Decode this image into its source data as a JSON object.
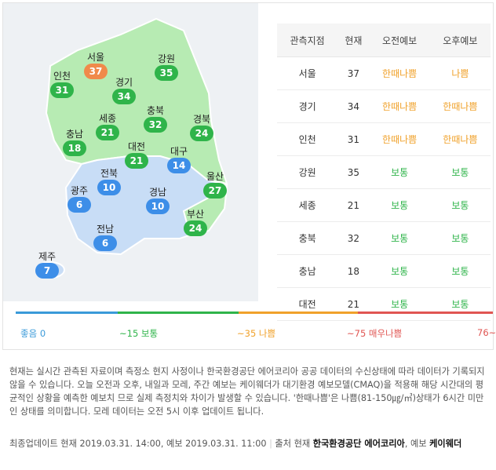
{
  "regions": [
    {
      "name": "서울",
      "value": "37",
      "color": "#f08a4b"
    },
    {
      "name": "강원",
      "value": "35",
      "color": "#2fb44a"
    },
    {
      "name": "인천",
      "value": "31",
      "color": "#2fb44a"
    },
    {
      "name": "경기",
      "value": "34",
      "color": "#2fb44a"
    },
    {
      "name": "충북",
      "value": "32",
      "color": "#2fb44a"
    },
    {
      "name": "세종",
      "value": "21",
      "color": "#2fb44a"
    },
    {
      "name": "경북",
      "value": "24",
      "color": "#2fb44a"
    },
    {
      "name": "충남",
      "value": "18",
      "color": "#2fb44a"
    },
    {
      "name": "대전",
      "value": "21",
      "color": "#2fb44a"
    },
    {
      "name": "대구",
      "value": "14",
      "color": "#3d8ee8"
    },
    {
      "name": "전북",
      "value": "10",
      "color": "#3d8ee8"
    },
    {
      "name": "울산",
      "value": "27",
      "color": "#2fb44a"
    },
    {
      "name": "광주",
      "value": "6",
      "color": "#3d8ee8"
    },
    {
      "name": "경남",
      "value": "10",
      "color": "#3d8ee8"
    },
    {
      "name": "부산",
      "value": "24",
      "color": "#2fb44a"
    },
    {
      "name": "전남",
      "value": "6",
      "color": "#3d8ee8"
    },
    {
      "name": "제주",
      "value": "7",
      "color": "#3d8ee8"
    }
  ],
  "table": {
    "headers": [
      "관측지점",
      "현재",
      "오전예보",
      "오후예보"
    ],
    "rows": [
      [
        "서울",
        "37",
        "한때나쁨",
        "나쁨"
      ],
      [
        "경기",
        "34",
        "한때나쁨",
        "한때나쁨"
      ],
      [
        "인천",
        "31",
        "한때나쁨",
        "한때나쁨"
      ],
      [
        "강원",
        "35",
        "보통",
        "보통"
      ],
      [
        "세종",
        "21",
        "보통",
        "보통"
      ],
      [
        "충북",
        "32",
        "보통",
        "보통"
      ],
      [
        "충남",
        "18",
        "보통",
        "보통"
      ],
      [
        "대전",
        "21",
        "보통",
        "보통"
      ]
    ]
  },
  "status_colors": {
    "보통": "#2fb44a",
    "한때나쁨": "#f0a12a",
    "나쁨": "#f0a12a"
  },
  "legend": [
    {
      "label": "좋음 0",
      "color": "#3a9ad9"
    },
    {
      "label": "~15 보통",
      "color": "#2fb44a"
    },
    {
      "label": "~35 나쁨",
      "color": "#f0a12a"
    },
    {
      "label": "~75 매우나쁨",
      "color": "#e05552"
    },
    {
      "label": "76~",
      "color": "#e05552"
    }
  ],
  "note": "현재는 실시간 관측된 자료이며 측정소 현지 사정이나 한국환경공단 에어코리아 공공 데이터의 수신상태에 따라 데이터가 기록되지 않을 수 있습니다. 오늘 오전과 오후, 내일과 모레, 주간 예보는 케이웨더가 대기환경 예보모델(CMAQ)을 적용해 해당 시간대의 평균적인 상황을 예측한 예보치 므로 실제 측정치와 차이가 발생할 수 있습니다. '한때나쁨'은 나쁨(81-150㎍/㎥)상태가 6시간 미만인 상태를 의미합니다. 모레 데이터는 오전 5시 이후 업데이트 됩니다.",
  "meta": {
    "update": "최종업데이트 현재 2019.03.31. 14:00, 예보 2019.03.31. 11:00",
    "source_prefix": "출처 현재",
    "source1": "한국환경공단 에어코리아",
    "source_mid": ", 예보",
    "source2": "케이웨더"
  }
}
